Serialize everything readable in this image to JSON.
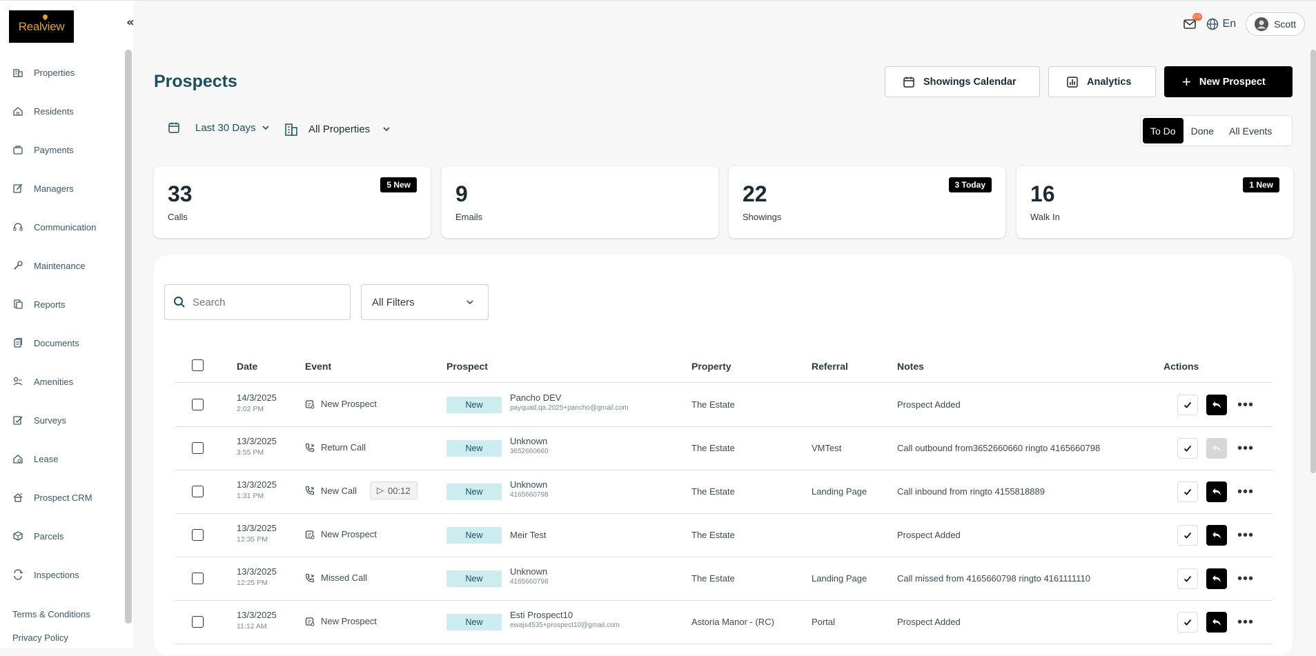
{
  "sidebar": {
    "logo": "Realview",
    "items": [
      {
        "label": "Properties",
        "icon": "building-icon"
      },
      {
        "label": "Residents",
        "icon": "home-icon"
      },
      {
        "label": "Payments",
        "icon": "wallet-icon"
      },
      {
        "label": "Managers",
        "icon": "edit-icon"
      },
      {
        "label": "Communication",
        "icon": "headset-icon"
      },
      {
        "label": "Maintenance",
        "icon": "wrench-icon"
      },
      {
        "label": "Reports",
        "icon": "report-icon"
      },
      {
        "label": "Documents",
        "icon": "document-icon"
      },
      {
        "label": "Amenities",
        "icon": "amenities-icon"
      },
      {
        "label": "Surveys",
        "icon": "survey-icon"
      },
      {
        "label": "Lease",
        "icon": "lease-icon"
      },
      {
        "label": "Prospect CRM",
        "icon": "crm-icon"
      },
      {
        "label": "Parcels",
        "icon": "parcel-icon"
      },
      {
        "label": "Inspections",
        "icon": "inspection-icon"
      }
    ],
    "footer": {
      "terms": "Terms & Conditions",
      "privacy": "Privacy Policy"
    }
  },
  "topbar": {
    "mail_badge": "155",
    "language": "En",
    "user": "Scott"
  },
  "page": {
    "title": "Prospects"
  },
  "buttons": {
    "calendar": "Showings Calendar",
    "analytics": "Analytics",
    "new_prospect": "New Prospect"
  },
  "filters": {
    "date_range": "Last 30 Days",
    "properties": "All Properties"
  },
  "segment": {
    "todo": "To Do",
    "done": "Done",
    "all": "All Events",
    "selected": "To Do"
  },
  "cards": [
    {
      "value": "33",
      "label": "Calls",
      "tag": "5 New"
    },
    {
      "value": "9",
      "label": "Emails",
      "tag": ""
    },
    {
      "value": "22",
      "label": "Showings",
      "tag": "3 Today"
    },
    {
      "value": "16",
      "label": "Walk In",
      "tag": "1 New"
    }
  ],
  "search": {
    "placeholder": "Search"
  },
  "all_filters": "All Filters",
  "table": {
    "headers": {
      "date": "Date",
      "event": "Event",
      "prospect": "Prospect",
      "property": "Property",
      "referral": "Referral",
      "notes": "Notes",
      "actions": "Actions"
    },
    "rows": [
      {
        "date": "14/3/2025",
        "time": "2:02 PM",
        "event": "New Prospect",
        "event_icon": "prospect-icon",
        "status": "New",
        "name": "Pancho DEV",
        "contact": "payquad.qa.2025+pancho@gmail.com",
        "property": "The Estate",
        "referral": "",
        "notes": "Prospect Added",
        "reply_enabled": true
      },
      {
        "date": "13/3/2025",
        "time": "3:55 PM",
        "event": "Return Call",
        "event_icon": "phone-icon",
        "status": "New",
        "name": "Unknown",
        "contact": "3652660660",
        "property": "The Estate",
        "referral": "VMTest",
        "notes": "Call outbound from3652660660 ringto 4165660798",
        "reply_enabled": false
      },
      {
        "date": "13/3/2025",
        "time": "1:31 PM",
        "event": "New Call",
        "event_icon": "phone-icon",
        "duration": "00:12",
        "status": "New",
        "name": "Unknown",
        "contact": "4165660798",
        "property": "The Estate",
        "referral": "Landing Page",
        "notes": "Call inbound from ringto 4155818889",
        "reply_enabled": true
      },
      {
        "date": "13/3/2025",
        "time": "12:35 PM",
        "event": "New Prospect",
        "event_icon": "prospect-icon",
        "status": "New",
        "name": "Meir Test",
        "contact": "",
        "property": "The Estate",
        "referral": "",
        "notes": "Prospect Added",
        "reply_enabled": true
      },
      {
        "date": "13/3/2025",
        "time": "12:25 PM",
        "event": "Missed Call",
        "event_icon": "phone-icon",
        "status": "New",
        "name": "Unknown",
        "contact": "4165660798",
        "property": "The Estate",
        "referral": "Landing Page",
        "notes": "Call missed from 4165660798 ringto 4161111110",
        "reply_enabled": true
      },
      {
        "date": "13/3/2025",
        "time": "11:12 AM",
        "event": "New Prospect",
        "event_icon": "prospect-icon",
        "status": "New",
        "name": "Esti Prospect10",
        "contact": "ewajs4535+prospect10@gmail.com",
        "property": "Astoria Manor - (RC)",
        "referral": "Portal",
        "notes": "Prospect Added",
        "reply_enabled": true
      }
    ]
  }
}
